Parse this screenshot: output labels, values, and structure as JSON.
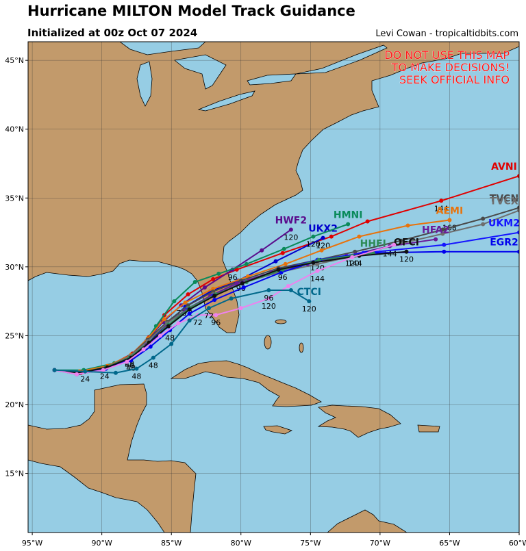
{
  "header": {
    "title": "Hurricane MILTON Model Track Guidance",
    "subtitle": "Initialized at 00z Oct 07 2024",
    "credit": "Levi Cowan - tropicaltidbits.com"
  },
  "warning": [
    "DO NOT USE THIS MAP",
    "TO MAKE DECISIONS!",
    "SEEK OFFICIAL INFO"
  ],
  "map": {
    "xlim": [
      -95.3,
      -60
    ],
    "ylim": [
      10.7,
      46.35
    ],
    "grid": true,
    "xticks": [
      {
        "value": -95,
        "label": "95°W"
      },
      {
        "value": -90,
        "label": "90°W"
      },
      {
        "value": -85,
        "label": "85°W"
      },
      {
        "value": -80,
        "label": "80°W"
      },
      {
        "value": -75,
        "label": "75°W"
      },
      {
        "value": -70,
        "label": "70°W"
      },
      {
        "value": -65,
        "label": "65°W"
      },
      {
        "value": -60,
        "label": "60°W"
      }
    ],
    "yticks": [
      {
        "value": 15,
        "label": "15°N"
      },
      {
        "value": 20,
        "label": "20°N"
      },
      {
        "value": 25,
        "label": "25°N"
      },
      {
        "value": 30,
        "label": "30°N"
      },
      {
        "value": 35,
        "label": "35°N"
      },
      {
        "value": 40,
        "label": "40°N"
      },
      {
        "value": 45,
        "label": "45°N"
      }
    ],
    "tracks": [
      {
        "name": "AVNI",
        "color": "#e00000",
        "lon": [
          -93.4,
          -91.5,
          -89.5,
          -87.8,
          -86.6,
          -85.5,
          -83.8,
          -82.0,
          -80.3,
          -77.0,
          -73.5,
          -70.9,
          -65.6,
          -60.0
        ],
        "lat": [
          22.5,
          22.3,
          22.8,
          23.7,
          24.9,
          26.5,
          28.0,
          29.1,
          29.8,
          31.0,
          32.2,
          33.3,
          34.8,
          36.6
        ],
        "hour_labels": [
          null,
          null,
          null,
          null,
          null,
          null,
          null,
          null,
          null,
          null,
          null,
          null,
          "144",
          null
        ]
      },
      {
        "name": "HWF2",
        "color": "#5a0c8c",
        "lon": [
          -93.4,
          -91.8,
          -89.8,
          -88.0,
          -86.8,
          -85.6,
          -84.3,
          -82.6,
          -80.6,
          -78.5,
          -76.4
        ],
        "lat": [
          22.5,
          22.3,
          22.6,
          23.4,
          24.6,
          26.0,
          27.2,
          28.5,
          29.8,
          31.2,
          32.7
        ],
        "hour_labels": [
          null,
          null,
          "24",
          "48",
          null,
          null,
          "72",
          null,
          "96",
          null,
          "120"
        ]
      },
      {
        "name": "UKX2",
        "color": "#0000cc",
        "lon": [
          -93.4,
          -91.7,
          -89.8,
          -88.0,
          -86.7,
          -85.4,
          -84.0,
          -82.2,
          -80.2,
          -77.5,
          -74.1
        ],
        "lat": [
          22.5,
          22.3,
          22.6,
          23.3,
          24.4,
          25.8,
          27.1,
          28.2,
          29.0,
          30.4,
          32.1
        ],
        "hour_labels": [
          null,
          null,
          null,
          null,
          null,
          null,
          null,
          null,
          null,
          null,
          "120"
        ]
      },
      {
        "name": "HMNI",
        "color": "#0a8a5a",
        "lon": [
          -93.4,
          -91.3,
          -89.1,
          -87.3,
          -86.1,
          -84.8,
          -83.3,
          -81.6,
          -79.6,
          -76.9,
          -74.8,
          -72.3
        ],
        "lat": [
          22.5,
          22.5,
          23.0,
          23.9,
          25.7,
          27.5,
          28.9,
          29.5,
          30.2,
          31.3,
          32.2,
          33.1
        ],
        "hour_labels": [
          null,
          null,
          null,
          null,
          null,
          null,
          null,
          null,
          null,
          null,
          "120",
          null
        ]
      },
      {
        "name": "AEMI",
        "color": "#e8730c",
        "lon": [
          -93.4,
          -91.6,
          -89.6,
          -87.9,
          -86.7,
          -85.5,
          -84.0,
          -82.0,
          -79.5,
          -76.8,
          -74.2,
          -71.5,
          -68.0,
          -65.0
        ],
        "lat": [
          22.5,
          22.4,
          22.8,
          23.6,
          24.8,
          26.2,
          27.4,
          28.4,
          29.3,
          30.2,
          31.2,
          32.2,
          33.0,
          33.4
        ],
        "hour_labels": [
          null,
          null,
          null,
          null,
          null,
          null,
          null,
          null,
          null,
          null,
          null,
          null,
          null,
          "168"
        ]
      },
      {
        "name": "TVCN",
        "color": "#4a4a4a",
        "lon": [
          -93.4,
          -91.6,
          -89.7,
          -88.0,
          -86.7,
          -85.3,
          -83.8,
          -82.0,
          -80.0,
          -77.3,
          -74.5,
          -71.8,
          -68.5,
          -65.5,
          -62.6,
          -60.0
        ],
        "lat": [
          22.5,
          22.3,
          22.7,
          23.5,
          24.7,
          26.0,
          27.2,
          28.2,
          29.0,
          29.9,
          30.5,
          31.1,
          31.9,
          32.7,
          33.5,
          34.3
        ],
        "hour_labels": [
          null,
          null,
          null,
          "48",
          null,
          null,
          "72",
          null,
          "96",
          null,
          "120",
          null,
          null,
          null,
          null,
          null
        ]
      },
      {
        "name": "TVCX",
        "color": "#6e6e6e",
        "lon": [
          -93.4,
          -91.6,
          -89.7,
          -88.0,
          -86.7,
          -85.3,
          -83.8,
          -82.0,
          -80.0,
          -77.3,
          -74.5,
          -71.8,
          -68.5,
          -65.5,
          -62.6,
          -60.0
        ],
        "lat": [
          22.5,
          22.3,
          22.7,
          23.5,
          24.6,
          25.9,
          27.0,
          28.0,
          28.8,
          29.6,
          30.2,
          30.8,
          31.7,
          32.4,
          33.1,
          34.1
        ],
        "hour_labels": [
          null,
          null,
          null,
          null,
          null,
          null,
          null,
          null,
          null,
          null,
          null,
          "144",
          null,
          null,
          null,
          null
        ]
      },
      {
        "name": "HFA2",
        "color": "#6a1b9a",
        "lon": [
          -93.4,
          -91.8,
          -89.9,
          -88.1,
          -86.8,
          -85.4,
          -84.0,
          -82.2,
          -80.3,
          -77.8,
          -75.2,
          -72.4,
          -69.3,
          -66.0
        ],
        "lat": [
          22.5,
          22.2,
          22.5,
          23.2,
          24.3,
          25.6,
          26.8,
          27.9,
          28.8,
          29.6,
          30.2,
          30.8,
          31.5,
          32.0
        ],
        "hour_labels": [
          null,
          null,
          null,
          null,
          null,
          null,
          null,
          null,
          null,
          null,
          null,
          null,
          "144",
          null
        ]
      },
      {
        "name": "UKM2",
        "color": "#1515ff",
        "lon": [
          -93.4,
          -91.7,
          -89.8,
          -88.0,
          -86.6,
          -85.2,
          -83.8,
          -82.0,
          -79.9,
          -77.2,
          -74.5,
          -71.2,
          -65.4,
          -60.0
        ],
        "lat": [
          22.5,
          22.3,
          22.6,
          23.3,
          24.4,
          25.7,
          26.9,
          27.9,
          28.8,
          29.8,
          30.5,
          31.0,
          31.6,
          32.5
        ],
        "hour_labels": [
          null,
          null,
          null,
          null,
          null,
          null,
          null,
          null,
          null,
          null,
          null,
          null,
          null,
          null
        ]
      },
      {
        "name": "EGR2",
        "color": "#0000ee",
        "lon": [
          -93.4,
          -91.6,
          -89.7,
          -87.9,
          -86.5,
          -85.1,
          -83.7,
          -81.9,
          -79.8,
          -77.1,
          -74.3,
          -71.0,
          -65.4,
          -60.0
        ],
        "lat": [
          22.5,
          22.3,
          22.6,
          23.2,
          24.2,
          25.4,
          26.6,
          27.6,
          28.5,
          29.6,
          30.5,
          31.0,
          31.1,
          31.1
        ],
        "hour_labels": [
          null,
          null,
          null,
          "48",
          null,
          "48",
          null,
          null,
          null,
          null,
          null,
          null,
          null,
          null
        ]
      },
      {
        "name": "HHFI",
        "color": "#2e8b57",
        "lon": [
          -93.4,
          -91.7,
          -89.7,
          -88.0,
          -86.6,
          -85.2,
          -83.7,
          -81.8,
          -79.6,
          -77.0,
          -74.4,
          -72.0,
          -70.5
        ],
        "lat": [
          22.5,
          22.3,
          22.7,
          23.4,
          24.5,
          25.8,
          27.0,
          28.0,
          28.9,
          29.8,
          30.5,
          30.8,
          31.0
        ],
        "hour_labels": [
          null,
          null,
          null,
          null,
          null,
          null,
          null,
          null,
          null,
          "96",
          null,
          "120",
          null
        ]
      },
      {
        "name": "OFCI",
        "color": "#111111",
        "lon": [
          -93.4,
          -91.6,
          -89.6,
          -87.9,
          -86.6,
          -85.2,
          -83.7,
          -81.9,
          -79.9,
          -77.3,
          -74.8,
          -71.5,
          -68.1
        ],
        "lat": [
          22.5,
          22.3,
          22.7,
          23.4,
          24.5,
          25.7,
          26.9,
          27.9,
          28.8,
          29.8,
          30.3,
          30.8,
          31.1
        ],
        "hour_labels": [
          null,
          null,
          null,
          null,
          null,
          null,
          null,
          null,
          null,
          null,
          null,
          null,
          "120"
        ]
      },
      {
        "color": "#ee82ee",
        "lon": [
          -93.4,
          -91.8,
          -89.9,
          -88.2,
          -87.0,
          -85.8,
          -84.5,
          -83.1,
          -81.8,
          -80.0,
          -78.0,
          -76.6,
          -74.5,
          -72.0,
          -69.0
        ],
        "lat": [
          22.5,
          22.2,
          22.5,
          23.1,
          24.0,
          25.0,
          25.9,
          26.5,
          26.5,
          27.0,
          27.7,
          28.6,
          29.7,
          30.7,
          31.6
        ],
        "hour_labels": [
          null,
          null,
          null,
          null,
          null,
          null,
          null,
          "72",
          "96",
          null,
          "120",
          null,
          "144",
          null,
          null
        ]
      },
      {
        "name": "CTCI",
        "color": "#00688b",
        "lon": [
          -93.4,
          -91.2,
          -89.0,
          -87.5,
          -86.3,
          -85.0,
          -83.7,
          -82.3,
          -80.7,
          -78.0,
          -76.4,
          -75.1
        ],
        "lat": [
          22.5,
          22.4,
          22.3,
          22.6,
          23.4,
          24.4,
          26.1,
          27.0,
          27.7,
          28.3,
          28.3,
          27.5
        ],
        "hour_labels": [
          null,
          "24",
          null,
          "48",
          "48",
          null,
          null,
          "72",
          null,
          "96",
          null,
          "120"
        ]
      }
    ]
  }
}
